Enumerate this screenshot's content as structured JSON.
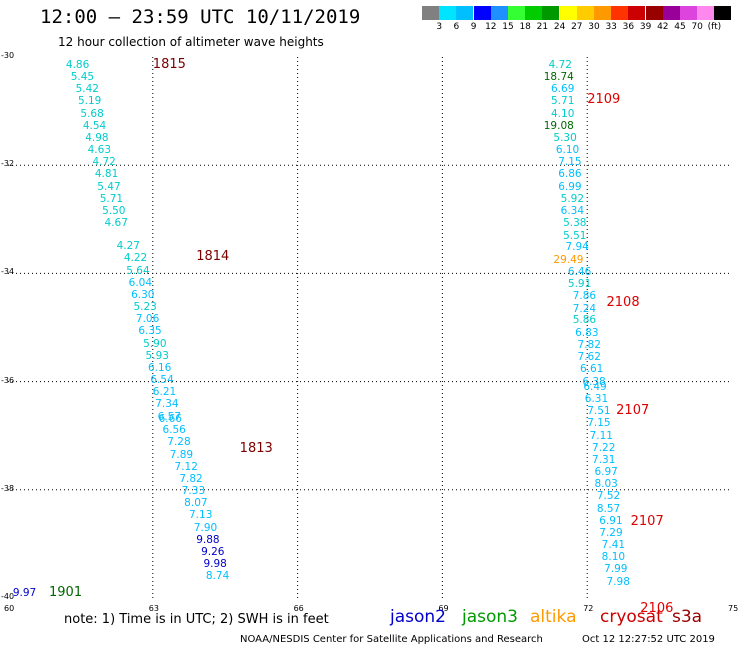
{
  "header": {
    "title": "12:00 — 23:59 UTC 10/11/2019",
    "subtitle": "12 hour collection of altimeter wave heights"
  },
  "legend": {
    "colors": [
      "#808080",
      "#00e5ff",
      "#00bfff",
      "#0000ff",
      "#1e90ff",
      "#33ff33",
      "#00cc00",
      "#009900",
      "#ffff00",
      "#ffcc00",
      "#ff9900",
      "#ff3300",
      "#cc0000",
      "#990000",
      "#990099",
      "#dd44dd",
      "#ff88ee",
      "#000000"
    ],
    "labels": [
      "3",
      "6",
      "9",
      "12",
      "15",
      "18",
      "21",
      "24",
      "27",
      "30",
      "33",
      "36",
      "39",
      "42",
      "45",
      "70",
      "(ft)"
    ]
  },
  "map": {
    "xlim": [
      60,
      75
    ],
    "ylim": [
      -40,
      -30
    ],
    "x_ticks": [
      "60",
      "63",
      "66",
      "69",
      "72",
      "75"
    ],
    "y_ticks": [
      "-30",
      "-32",
      "-34",
      "-36",
      "-38",
      "-40"
    ],
    "grid_x": [
      63,
      66,
      69,
      72
    ],
    "grid_y": [
      -32,
      -34,
      -36,
      -38
    ]
  },
  "tracks": [
    {
      "label": "1815",
      "lon": 63.0,
      "lat": -30.15,
      "color": "#7a0000"
    },
    {
      "label": "1814",
      "lon": 63.9,
      "lat": -33.7,
      "color": "#7a0000"
    },
    {
      "label": "1813",
      "lon": 64.8,
      "lat": -37.25,
      "color": "#7a0000"
    },
    {
      "label": "1901",
      "lon": 60.85,
      "lat": -39.9,
      "color": "#006600"
    },
    {
      "label": "2109",
      "lon": 72.0,
      "lat": -30.8,
      "color": "#dd0000"
    },
    {
      "label": "2108",
      "lon": 72.4,
      "lat": -34.55,
      "color": "#dd0000"
    },
    {
      "label": "2107",
      "lon": 72.6,
      "lat": -36.55,
      "color": "#dd0000"
    },
    {
      "label": "2107",
      "lon": 72.9,
      "lat": -38.6,
      "color": "#dd0000"
    },
    {
      "label": "2106",
      "lon": 73.1,
      "lat": -40.2,
      "color": "#dd0000"
    }
  ],
  "points": [
    {
      "v": "4.86",
      "lon": 61.2,
      "lat": -30.15,
      "c": "#00cccc"
    },
    {
      "v": "5.45",
      "lon": 61.3,
      "lat": -30.37,
      "c": "#00cccc"
    },
    {
      "v": "5.42",
      "lon": 61.4,
      "lat": -30.6,
      "c": "#00cccc"
    },
    {
      "v": "5.19",
      "lon": 61.45,
      "lat": -30.82,
      "c": "#00cccc"
    },
    {
      "v": "5.68",
      "lon": 61.5,
      "lat": -31.05,
      "c": "#00cccc"
    },
    {
      "v": "4.54",
      "lon": 61.55,
      "lat": -31.27,
      "c": "#00cccc"
    },
    {
      "v": "4.98",
      "lon": 61.6,
      "lat": -31.5,
      "c": "#00cccc"
    },
    {
      "v": "4.63",
      "lon": 61.65,
      "lat": -31.72,
      "c": "#00cccc"
    },
    {
      "v": "4.72",
      "lon": 61.75,
      "lat": -31.95,
      "c": "#00cccc"
    },
    {
      "v": "4.81",
      "lon": 61.8,
      "lat": -32.17,
      "c": "#00cccc"
    },
    {
      "v": "5.47",
      "lon": 61.85,
      "lat": -32.4,
      "c": "#00cccc"
    },
    {
      "v": "5.71",
      "lon": 61.9,
      "lat": -32.62,
      "c": "#00cccc"
    },
    {
      "v": "5.50",
      "lon": 61.95,
      "lat": -32.85,
      "c": "#00cccc"
    },
    {
      "v": "4.67",
      "lon": 62.0,
      "lat": -33.07,
      "c": "#00cccc"
    },
    {
      "v": "4.27",
      "lon": 62.25,
      "lat": -33.5,
      "c": "#00cccc"
    },
    {
      "v": "4.22",
      "lon": 62.4,
      "lat": -33.72,
      "c": "#00cccc"
    },
    {
      "v": "5.64",
      "lon": 62.45,
      "lat": -33.95,
      "c": "#00cccc"
    },
    {
      "v": "6.04",
      "lon": 62.5,
      "lat": -34.17,
      "c": "#00bfff"
    },
    {
      "v": "6.30",
      "lon": 62.55,
      "lat": -34.4,
      "c": "#00bfff"
    },
    {
      "v": "5.23",
      "lon": 62.6,
      "lat": -34.62,
      "c": "#00cccc"
    },
    {
      "v": "7.06",
      "lon": 62.65,
      "lat": -34.85,
      "c": "#00bfff"
    },
    {
      "v": "6.35",
      "lon": 62.7,
      "lat": -35.07,
      "c": "#00bfff"
    },
    {
      "v": "5.90",
      "lon": 62.8,
      "lat": -35.3,
      "c": "#00cccc"
    },
    {
      "v": "5.93",
      "lon": 62.85,
      "lat": -35.52,
      "c": "#00cccc"
    },
    {
      "v": "6.16",
      "lon": 62.9,
      "lat": -35.75,
      "c": "#00bfff"
    },
    {
      "v": "6.54",
      "lon": 62.95,
      "lat": -35.97,
      "c": "#00bfff"
    },
    {
      "v": "6.21",
      "lon": 63.0,
      "lat": -36.2,
      "c": "#00bfff"
    },
    {
      "v": "7.34",
      "lon": 63.05,
      "lat": -36.42,
      "c": "#00bfff"
    },
    {
      "v": "6.57",
      "lon": 63.1,
      "lat": -36.65,
      "c": "#00bfff"
    },
    {
      "v": "6.66",
      "lon": 63.12,
      "lat": -36.7,
      "c": "#00bfff"
    },
    {
      "v": "6.56",
      "lon": 63.2,
      "lat": -36.9,
      "c": "#00bfff"
    },
    {
      "v": "7.28",
      "lon": 63.3,
      "lat": -37.12,
      "c": "#00bfff"
    },
    {
      "v": "7.89",
      "lon": 63.35,
      "lat": -37.35,
      "c": "#00bfff"
    },
    {
      "v": "7.12",
      "lon": 63.45,
      "lat": -37.57,
      "c": "#00bfff"
    },
    {
      "v": "7.82",
      "lon": 63.55,
      "lat": -37.8,
      "c": "#00bfff"
    },
    {
      "v": "7.33",
      "lon": 63.6,
      "lat": -38.02,
      "c": "#00bfff"
    },
    {
      "v": "8.07",
      "lon": 63.65,
      "lat": -38.25,
      "c": "#00bfff"
    },
    {
      "v": "7.13",
      "lon": 63.75,
      "lat": -38.47,
      "c": "#00bfff"
    },
    {
      "v": "7.90",
      "lon": 63.85,
      "lat": -38.7,
      "c": "#00bfff"
    },
    {
      "v": "9.88",
      "lon": 63.9,
      "lat": -38.92,
      "c": "#0000cc"
    },
    {
      "v": "9.26",
      "lon": 64.0,
      "lat": -39.15,
      "c": "#0000cc"
    },
    {
      "v": "9.98",
      "lon": 64.05,
      "lat": -39.37,
      "c": "#0000cc"
    },
    {
      "v": "8.74",
      "lon": 64.1,
      "lat": -39.6,
      "c": "#00bfff"
    },
    {
      "v": "9.97",
      "lon": 60.1,
      "lat": -39.9,
      "c": "#0000cc"
    },
    {
      "v": "4.72",
      "lon": 71.2,
      "lat": -30.15,
      "c": "#00cccc"
    },
    {
      "v": "18.74",
      "lon": 71.1,
      "lat": -30.37,
      "c": "#006600"
    },
    {
      "v": "6.69",
      "lon": 71.25,
      "lat": -30.6,
      "c": "#00bfff"
    },
    {
      "v": "5.71",
      "lon": 71.25,
      "lat": -30.82,
      "c": "#00cccc"
    },
    {
      "v": "4.10",
      "lon": 71.25,
      "lat": -31.05,
      "c": "#00cccc"
    },
    {
      "v": "19.08",
      "lon": 71.1,
      "lat": -31.27,
      "c": "#006600"
    },
    {
      "v": "5.30",
      "lon": 71.3,
      "lat": -31.5,
      "c": "#00cccc"
    },
    {
      "v": "6.10",
      "lon": 71.35,
      "lat": -31.72,
      "c": "#00bfff"
    },
    {
      "v": "7.15",
      "lon": 71.4,
      "lat": -31.95,
      "c": "#00bfff"
    },
    {
      "v": "6.86",
      "lon": 71.4,
      "lat": -32.17,
      "c": "#00bfff"
    },
    {
      "v": "6.99",
      "lon": 71.4,
      "lat": -32.4,
      "c": "#00bfff"
    },
    {
      "v": "5.92",
      "lon": 71.45,
      "lat": -32.62,
      "c": "#00cccc"
    },
    {
      "v": "6.34",
      "lon": 71.45,
      "lat": -32.85,
      "c": "#00bfff"
    },
    {
      "v": "5.38",
      "lon": 71.5,
      "lat": -33.07,
      "c": "#00cccc"
    },
    {
      "v": "5.51",
      "lon": 71.5,
      "lat": -33.3,
      "c": "#00cccc"
    },
    {
      "v": "7.94",
      "lon": 71.55,
      "lat": -33.52,
      "c": "#00bfff"
    },
    {
      "v": "29.49",
      "lon": 71.3,
      "lat": -33.75,
      "c": "#ff9900"
    },
    {
      "v": "6.46",
      "lon": 71.6,
      "lat": -33.97,
      "c": "#00bfff"
    },
    {
      "v": "5.91",
      "lon": 71.6,
      "lat": -34.2,
      "c": "#00cccc"
    },
    {
      "v": "7.86",
      "lon": 71.7,
      "lat": -34.42,
      "c": "#00bfff"
    },
    {
      "v": "7.24",
      "lon": 71.7,
      "lat": -34.65,
      "c": "#00bfff"
    },
    {
      "v": "5.86",
      "lon": 71.7,
      "lat": -34.87,
      "c": "#00cccc"
    },
    {
      "v": "6.83",
      "lon": 71.75,
      "lat": -35.1,
      "c": "#00bfff"
    },
    {
      "v": "7.82",
      "lon": 71.8,
      "lat": -35.32,
      "c": "#00bfff"
    },
    {
      "v": "7.62",
      "lon": 71.8,
      "lat": -35.55,
      "c": "#00bfff"
    },
    {
      "v": "6.61",
      "lon": 71.85,
      "lat": -35.77,
      "c": "#00bfff"
    },
    {
      "v": "6.38",
      "lon": 71.9,
      "lat": -36.0,
      "c": "#00bfff"
    },
    {
      "v": "6.49",
      "lon": 71.92,
      "lat": -36.1,
      "c": "#00bfff"
    },
    {
      "v": "6.31",
      "lon": 71.95,
      "lat": -36.32,
      "c": "#00bfff"
    },
    {
      "v": "7.51",
      "lon": 72.0,
      "lat": -36.55,
      "c": "#00bfff"
    },
    {
      "v": "7.15",
      "lon": 72.0,
      "lat": -36.77,
      "c": "#00bfff"
    },
    {
      "v": "7.11",
      "lon": 72.05,
      "lat": -37.0,
      "c": "#00bfff"
    },
    {
      "v": "7.22",
      "lon": 72.1,
      "lat": -37.22,
      "c": "#00bfff"
    },
    {
      "v": "7.31",
      "lon": 72.1,
      "lat": -37.45,
      "c": "#00bfff"
    },
    {
      "v": "6.97",
      "lon": 72.15,
      "lat": -37.67,
      "c": "#00bfff"
    },
    {
      "v": "8.03",
      "lon": 72.15,
      "lat": -37.9,
      "c": "#00bfff"
    },
    {
      "v": "7.52",
      "lon": 72.2,
      "lat": -38.12,
      "c": "#00bfff"
    },
    {
      "v": "8.57",
      "lon": 72.2,
      "lat": -38.35,
      "c": "#00bfff"
    },
    {
      "v": "6.91",
      "lon": 72.25,
      "lat": -38.57,
      "c": "#00bfff"
    },
    {
      "v": "7.29",
      "lon": 72.25,
      "lat": -38.8,
      "c": "#00bfff"
    },
    {
      "v": "7.41",
      "lon": 72.3,
      "lat": -39.02,
      "c": "#00bfff"
    },
    {
      "v": "8.10",
      "lon": 72.3,
      "lat": -39.25,
      "c": "#00bfff"
    },
    {
      "v": "7.99",
      "lon": 72.35,
      "lat": -39.47,
      "c": "#00bfff"
    },
    {
      "v": "7.98",
      "lon": 72.4,
      "lat": -39.7,
      "c": "#00bfff"
    }
  ],
  "footer": {
    "note": "note:  1) Time is in UTC;  2) SWH is in feet",
    "satellites": [
      {
        "name": "jason2",
        "color": "#0000cc"
      },
      {
        "name": "jason3",
        "color": "#009900"
      },
      {
        "name": "altika",
        "color": "#ff9900"
      },
      {
        "name": "cryosat",
        "color": "#cc0000"
      },
      {
        "name": "s3a",
        "color": "#990000"
      }
    ],
    "credit": "NOAA/NESDIS Center for Satellite Applications and Research",
    "timestamp": "Oct 12 12:27:52 UTC 2019"
  }
}
